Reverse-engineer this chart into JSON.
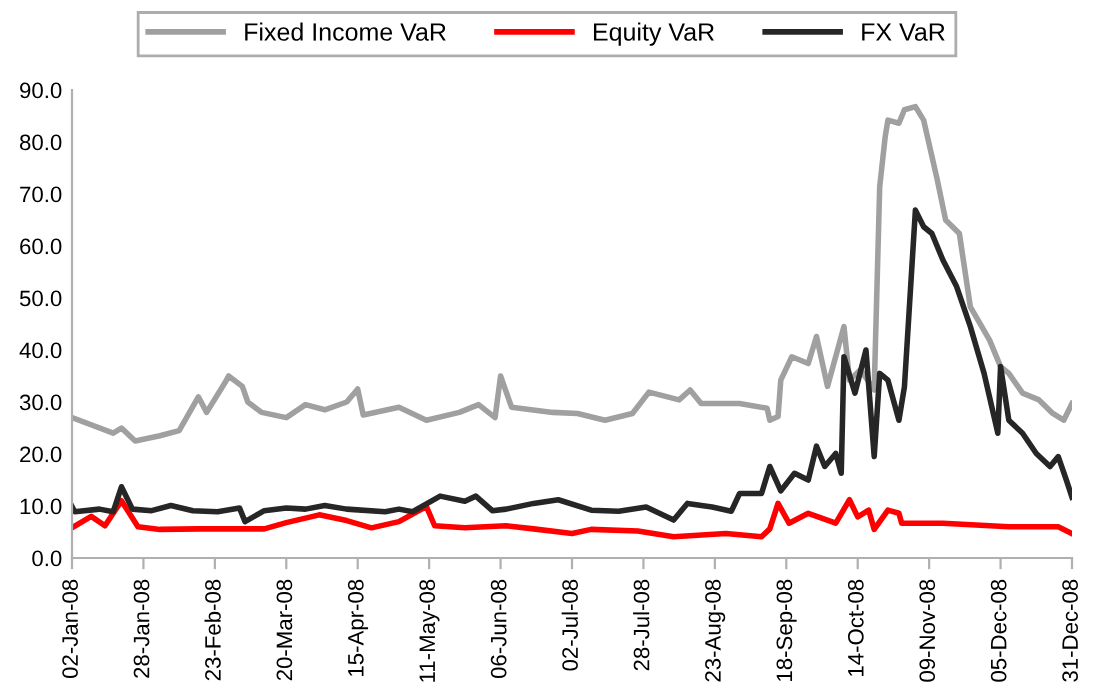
{
  "chart_data": {
    "type": "line",
    "xlim": [
      "2008-01-02",
      "2008-12-31"
    ],
    "xticks": [
      {
        "value": "2008-01-02",
        "label": "02-Jan-08"
      },
      {
        "value": "2008-01-28",
        "label": "28-Jan-08"
      },
      {
        "value": "2008-02-23",
        "label": "23-Feb-08"
      },
      {
        "value": "2008-03-20",
        "label": "20-Mar-08"
      },
      {
        "value": "2008-04-15",
        "label": "15-Apr-08"
      },
      {
        "value": "2008-05-11",
        "label": "11-May-08"
      },
      {
        "value": "2008-06-06",
        "label": "06-Jun-08"
      },
      {
        "value": "2008-07-02",
        "label": "02-Jul-08"
      },
      {
        "value": "2008-07-28",
        "label": "28-Jul-08"
      },
      {
        "value": "2008-08-23",
        "label": "23-Aug-08"
      },
      {
        "value": "2008-09-18",
        "label": "18-Sep-08"
      },
      {
        "value": "2008-10-14",
        "label": "14-Oct-08"
      },
      {
        "value": "2008-11-09",
        "label": "09-Nov-08"
      },
      {
        "value": "2008-12-05",
        "label": "05-Dec-08"
      },
      {
        "value": "2008-12-31",
        "label": "31-Dec-08"
      }
    ],
    "ylim": [
      0,
      90
    ],
    "yticks": [
      {
        "value": 0,
        "label": "0.0"
      },
      {
        "value": 10,
        "label": "10.0"
      },
      {
        "value": 20,
        "label": "20.0"
      },
      {
        "value": 30,
        "label": "30.0"
      },
      {
        "value": 40,
        "label": "40.0"
      },
      {
        "value": 50,
        "label": "50.0"
      },
      {
        "value": 60,
        "label": "60.0"
      },
      {
        "value": 70,
        "label": "70.0"
      },
      {
        "value": 80,
        "label": "80.0"
      },
      {
        "value": 90,
        "label": "90.0"
      }
    ],
    "grid": false,
    "legend": "top",
    "marker": "none",
    "line_style": "solid",
    "series": [
      {
        "name": "Fixed Income VaR",
        "color": "#a0a0a0",
        "x": [
          "2008-01-02",
          "2008-01-17",
          "2008-01-20",
          "2008-01-25",
          "2008-02-03",
          "2008-02-10",
          "2008-02-17",
          "2008-02-20",
          "2008-02-27",
          "2008-02-28",
          "2008-03-04",
          "2008-03-06",
          "2008-03-11",
          "2008-03-20",
          "2008-03-27",
          "2008-04-03",
          "2008-04-11",
          "2008-04-15",
          "2008-04-17",
          "2008-04-30",
          "2008-05-10",
          "2008-05-22",
          "2008-05-29",
          "2008-06-04",
          "2008-06-06",
          "2008-06-10",
          "2008-06-25",
          "2008-07-04",
          "2008-07-14",
          "2008-07-24",
          "2008-07-30",
          "2008-08-10",
          "2008-08-14",
          "2008-08-18",
          "2008-09-01",
          "2008-09-11",
          "2008-09-12",
          "2008-09-15",
          "2008-09-16",
          "2008-09-20",
          "2008-09-26",
          "2008-09-29",
          "2008-10-03",
          "2008-10-09",
          "2008-10-11",
          "2008-10-15",
          "2008-10-20",
          "2008-10-22",
          "2008-10-24",
          "2008-10-25",
          "2008-10-29",
          "2008-10-31",
          "2008-11-04",
          "2008-11-07",
          "2008-11-12",
          "2008-11-15",
          "2008-11-20",
          "2008-11-24",
          "2008-12-01",
          "2008-12-05",
          "2008-12-08",
          "2008-12-13",
          "2008-12-19",
          "2008-12-24",
          "2008-12-28",
          "2008-12-31"
        ],
        "values": [
          27,
          24,
          25,
          22.5,
          23.5,
          24.5,
          31,
          28,
          34,
          35,
          33,
          30,
          28,
          27,
          29.5,
          28.5,
          30,
          32.5,
          27.5,
          29,
          26.5,
          28,
          29.5,
          27,
          35,
          29,
          28,
          27.8,
          26.5,
          27.8,
          31.9,
          30.4,
          32.3,
          29.7,
          29.7,
          28.8,
          26.5,
          27.2,
          34.2,
          38.7,
          37.4,
          42.6,
          33,
          44.5,
          34.2,
          36.2,
          32.3,
          71.4,
          81,
          84.2,
          83.6,
          86.2,
          86.8,
          84.2,
          72.6,
          65,
          62.4,
          48.3,
          41.9,
          36.8,
          35.5,
          31.7,
          30.4,
          27.8,
          26.5,
          29.7
        ]
      },
      {
        "name": "Equity VaR",
        "color": "#ff0000",
        "x": [
          "2008-01-02",
          "2008-01-09",
          "2008-01-14",
          "2008-01-20",
          "2008-01-26",
          "2008-02-03",
          "2008-02-17",
          "2008-03-12",
          "2008-03-20",
          "2008-04-01",
          "2008-04-11",
          "2008-04-20",
          "2008-04-30",
          "2008-05-10",
          "2008-05-13",
          "2008-05-24",
          "2008-06-08",
          "2008-06-18",
          "2008-07-02",
          "2008-07-09",
          "2008-07-26",
          "2008-08-08",
          "2008-08-27",
          "2008-09-09",
          "2008-09-12",
          "2008-09-15",
          "2008-09-19",
          "2008-09-26",
          "2008-10-06",
          "2008-10-11",
          "2008-10-14",
          "2008-10-18",
          "2008-10-20",
          "2008-10-25",
          "2008-10-29",
          "2008-10-30",
          "2008-11-14",
          "2008-12-08",
          "2008-12-26",
          "2008-12-31"
        ],
        "values": [
          5.8,
          8,
          6.2,
          11,
          6,
          5.5,
          5.6,
          5.6,
          6.8,
          8.3,
          7.2,
          5.8,
          7,
          9.9,
          6.2,
          5.8,
          6.2,
          5.6,
          4.7,
          5.5,
          5.2,
          4.1,
          4.7,
          4.1,
          5.6,
          10.5,
          6.7,
          8.6,
          6.7,
          11.2,
          7.9,
          9.2,
          5.5,
          9.2,
          8.6,
          6.7,
          6.7,
          6,
          6,
          4.7
        ]
      },
      {
        "name": "FX VaR",
        "color": "#262626",
        "x": [
          "2008-01-02",
          "2008-01-03",
          "2008-01-12",
          "2008-01-17",
          "2008-01-20",
          "2008-01-24",
          "2008-01-31",
          "2008-02-07",
          "2008-02-15",
          "2008-02-24",
          "2008-03-03",
          "2008-03-05",
          "2008-03-12",
          "2008-03-20",
          "2008-03-27",
          "2008-04-03",
          "2008-04-11",
          "2008-04-25",
          "2008-04-30",
          "2008-05-05",
          "2008-05-15",
          "2008-05-24",
          "2008-05-28",
          "2008-06-03",
          "2008-06-08",
          "2008-06-18",
          "2008-06-27",
          "2008-07-09",
          "2008-07-19",
          "2008-07-29",
          "2008-08-08",
          "2008-08-13",
          "2008-08-22",
          "2008-08-29",
          "2008-09-01",
          "2008-09-09",
          "2008-09-12",
          "2008-09-16",
          "2008-09-21",
          "2008-09-26",
          "2008-09-29",
          "2008-10-02",
          "2008-10-06",
          "2008-10-08",
          "2008-10-09",
          "2008-10-13",
          "2008-10-17",
          "2008-10-20",
          "2008-10-22",
          "2008-10-25",
          "2008-10-29",
          "2008-10-31",
          "2008-11-04",
          "2008-11-07",
          "2008-11-10",
          "2008-11-14",
          "2008-11-19",
          "2008-11-24",
          "2008-11-29",
          "2008-12-04",
          "2008-12-05",
          "2008-12-08",
          "2008-12-13",
          "2008-12-18",
          "2008-12-23",
          "2008-12-26",
          "2008-12-29",
          "2008-12-31"
        ],
        "values": [
          9.9,
          8.9,
          9.4,
          8.9,
          13.7,
          9.4,
          9.1,
          10.1,
          9.1,
          8.9,
          9.6,
          7,
          9.1,
          9.6,
          9.4,
          10.1,
          9.4,
          8.9,
          9.4,
          8.9,
          11.9,
          10.9,
          11.9,
          9.1,
          9.4,
          10.5,
          11.2,
          9.2,
          9.0,
          9.8,
          7.3,
          10.5,
          9.8,
          9.0,
          12.4,
          12.4,
          17.6,
          12.9,
          16.3,
          15,
          21.5,
          17.6,
          20.1,
          16.3,
          38.7,
          31.7,
          40,
          19.5,
          35.5,
          34.2,
          26.5,
          32.9,
          66.9,
          63.7,
          62.4,
          57.3,
          52.2,
          44.5,
          35.5,
          24,
          36.8,
          26.5,
          24,
          20.1,
          17.6,
          19.5,
          14.9,
          11.7
        ]
      }
    ]
  }
}
